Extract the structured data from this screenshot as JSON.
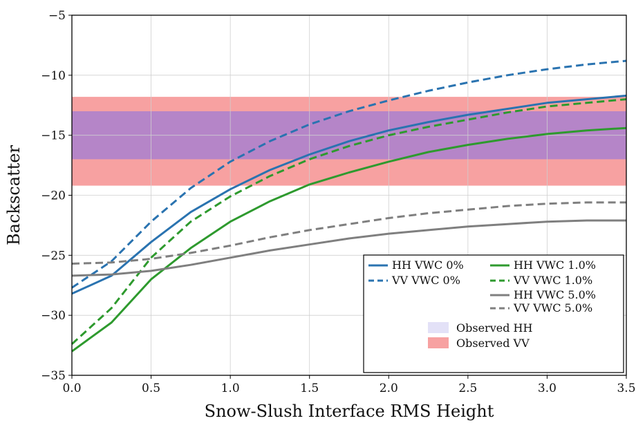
{
  "chart_data": {
    "type": "line",
    "title": "",
    "xlabel": "Snow-Slush Interface RMS Height",
    "ylabel": "Backscatter",
    "xlim": [
      0.0,
      3.5
    ],
    "ylim": [
      -35,
      -5
    ],
    "xticks": [
      "0.0",
      "0.5",
      "1.0",
      "1.5",
      "2.0",
      "2.5",
      "3.0",
      "3.5"
    ],
    "yticks": [
      "−35",
      "−30",
      "−25",
      "−20",
      "−15",
      "−10",
      "−5"
    ],
    "grid": true,
    "legend_position": "lower-right",
    "x": [
      0.0,
      0.25,
      0.5,
      0.75,
      1.0,
      1.25,
      1.5,
      1.75,
      2.0,
      2.25,
      2.5,
      2.75,
      3.0,
      3.25,
      3.5
    ],
    "series": [
      {
        "name": "HH VWC 0%",
        "color": "#2a73b0",
        "dash": "solid",
        "values": [
          -28.2,
          -26.7,
          -23.9,
          -21.4,
          -19.5,
          -17.9,
          -16.6,
          -15.5,
          -14.6,
          -13.9,
          -13.3,
          -12.8,
          -12.3,
          -12.0,
          -11.7
        ]
      },
      {
        "name": "VV VWC 0%",
        "color": "#2a73b0",
        "dash": "dashed",
        "values": [
          -27.7,
          -25.5,
          -22.2,
          -19.4,
          -17.2,
          -15.5,
          -14.1,
          -13.0,
          -12.1,
          -11.3,
          -10.6,
          -10.0,
          -9.5,
          -9.1,
          -8.8
        ]
      },
      {
        "name": "HH VWC 1.0%",
        "color": "#2e9a2e",
        "dash": "solid",
        "values": [
          -33.0,
          -30.6,
          -27.0,
          -24.4,
          -22.2,
          -20.5,
          -19.1,
          -18.1,
          -17.2,
          -16.4,
          -15.8,
          -15.3,
          -14.9,
          -14.6,
          -14.4
        ]
      },
      {
        "name": "VV VWC 1.0%",
        "color": "#2e9a2e",
        "dash": "dashed",
        "values": [
          -32.4,
          -29.4,
          -25.2,
          -22.2,
          -20.1,
          -18.4,
          -17.0,
          -15.9,
          -15.0,
          -14.3,
          -13.7,
          -13.1,
          -12.6,
          -12.3,
          -12.0
        ]
      },
      {
        "name": "HH VWC 5.0%",
        "color": "#7f7f7f",
        "dash": "solid",
        "values": [
          -26.7,
          -26.6,
          -26.3,
          -25.8,
          -25.2,
          -24.6,
          -24.1,
          -23.6,
          -23.2,
          -22.9,
          -22.6,
          -22.4,
          -22.2,
          -22.1,
          -22.1
        ]
      },
      {
        "name": "VV VWC 5.0%",
        "color": "#7f7f7f",
        "dash": "dashed",
        "values": [
          -25.7,
          -25.6,
          -25.3,
          -24.8,
          -24.2,
          -23.5,
          -22.9,
          -22.4,
          -21.9,
          -21.5,
          -21.2,
          -20.9,
          -20.7,
          -20.6,
          -20.6
        ]
      }
    ],
    "bands": [
      {
        "name": "Observed HH",
        "color": "#e3e1f7",
        "ymin": -17.0,
        "ymax": -13.0
      },
      {
        "name": "Observed VV",
        "color": "#f7a1a1",
        "ymin": -19.2,
        "ymax": -11.8
      }
    ],
    "overlap_color": "#b585c8"
  }
}
